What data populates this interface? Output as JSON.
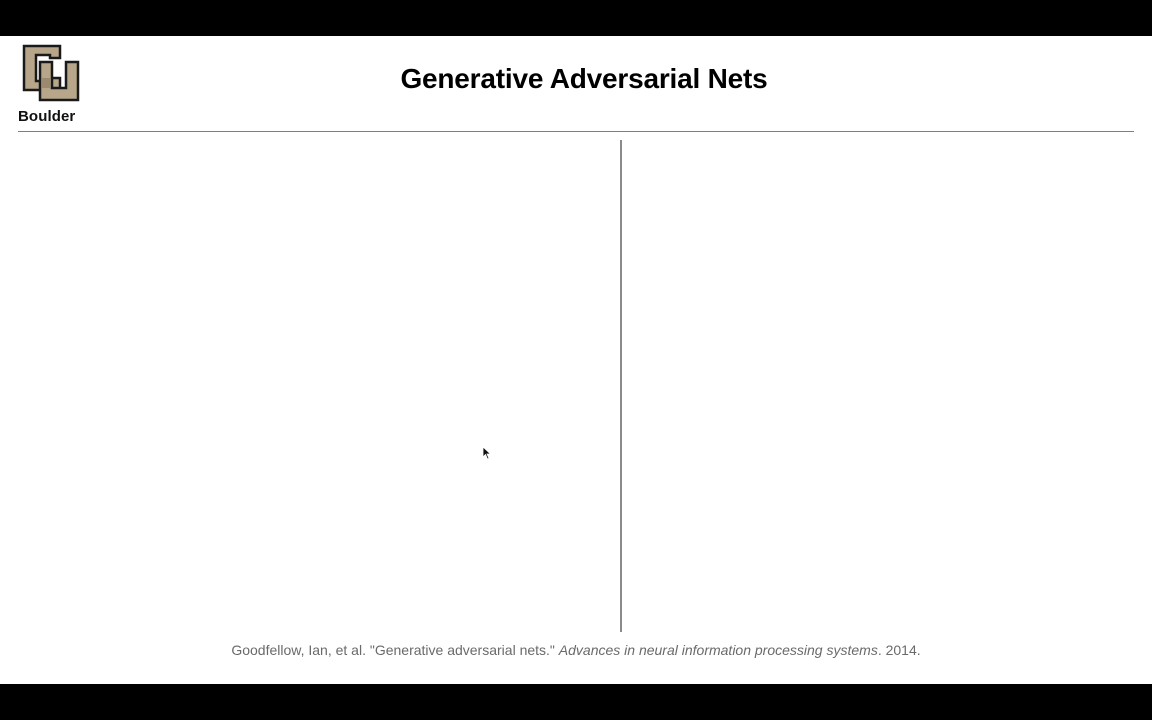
{
  "slide": {
    "logo": {
      "wordmark": "Boulder",
      "icon": "cu-interlocking-logo-icon",
      "fill_color": "#b8a68b",
      "outline_color": "#1a1a1a"
    },
    "title": "Generative Adversarial Nets",
    "citation": {
      "authors": "Goodfellow, Ian, et al. \"Generative adversarial nets.\"",
      "venue": "Advances in neural information processing systems",
      "year": ". 2014."
    }
  },
  "cursor": {
    "icon": "pointer-arrow-icon"
  },
  "colors": {
    "letterbox": "#000000",
    "slide_background": "#ffffff",
    "rule": "#8a7a7d",
    "citation_text": "#6a6a6a"
  }
}
